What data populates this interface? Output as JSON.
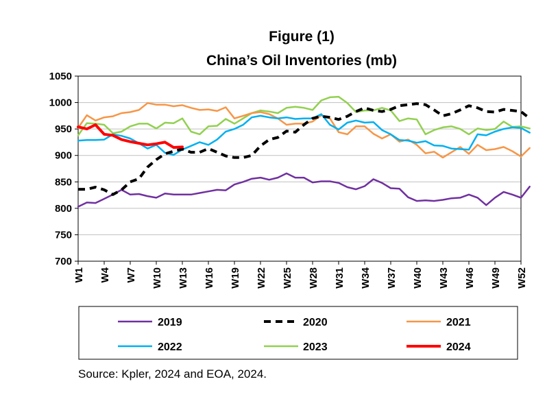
{
  "chart_data": {
    "type": "line",
    "title": "Figure (1)",
    "subtitle": "China’s Oil Inventories (mb)",
    "xlabel": "",
    "ylabel": "",
    "ylim": [
      700,
      1050
    ],
    "yticks": [
      700,
      750,
      800,
      850,
      900,
      950,
      1000,
      1050
    ],
    "x_tick_labels": [
      "W1",
      "W4",
      "W7",
      "W10",
      "W13",
      "W16",
      "W19",
      "W22",
      "W25",
      "W28",
      "W31",
      "W34",
      "W37",
      "W40",
      "W43",
      "W46",
      "W49",
      "W52"
    ],
    "x_tick_weeks": [
      1,
      4,
      7,
      10,
      13,
      16,
      19,
      22,
      25,
      28,
      31,
      34,
      37,
      40,
      43,
      46,
      49,
      52
    ],
    "grid": "horizontal",
    "legend_position": "bottom",
    "series": [
      {
        "name": "2019",
        "color": "#7030A0",
        "style": "solid",
        "values": [
          803,
          811,
          810,
          818,
          826,
          835,
          826,
          827,
          823,
          820,
          828,
          826,
          826,
          826,
          829,
          832,
          835,
          834,
          845,
          850,
          856,
          858,
          854,
          858,
          866,
          858,
          858,
          849,
          851,
          851,
          848,
          840,
          836,
          842,
          855,
          848,
          838,
          837,
          821,
          814,
          815,
          814,
          816,
          819,
          820,
          826,
          820,
          806,
          820,
          831,
          826,
          820,
          841
        ]
      },
      {
        "name": "2020",
        "color": "#000000",
        "style": "dashed",
        "values": [
          836,
          836,
          840,
          835,
          826,
          835,
          850,
          856,
          878,
          892,
          903,
          908,
          912,
          906,
          906,
          913,
          906,
          899,
          896,
          896,
          900,
          918,
          930,
          934,
          946,
          944,
          958,
          970,
          974,
          972,
          968,
          974,
          983,
          990,
          985,
          983,
          987,
          994,
          996,
          998,
          996,
          986,
          975,
          979,
          986,
          994,
          990,
          983,
          982,
          987,
          985,
          983,
          970
        ]
      },
      {
        "name": "2021",
        "color": "#F79646",
        "style": "solid",
        "values": [
          952,
          976,
          966,
          972,
          974,
          980,
          982,
          986,
          999,
          996,
          996,
          993,
          995,
          990,
          986,
          987,
          984,
          991,
          970,
          975,
          980,
          982,
          978,
          970,
          958,
          960,
          960,
          964,
          976,
          970,
          944,
          940,
          955,
          955,
          941,
          932,
          940,
          926,
          930,
          920,
          904,
          907,
          896,
          906,
          916,
          903,
          920,
          910,
          912,
          916,
          908,
          898,
          914
        ]
      },
      {
        "name": "2022",
        "color": "#00B0F0",
        "style": "solid",
        "values": [
          928,
          929,
          929,
          930,
          940,
          937,
          932,
          923,
          913,
          920,
          905,
          901,
          911,
          918,
          925,
          920,
          930,
          945,
          950,
          958,
          972,
          975,
          972,
          970,
          972,
          969,
          970,
          970,
          978,
          958,
          949,
          962,
          966,
          962,
          963,
          948,
          940,
          929,
          928,
          924,
          927,
          919,
          918,
          913,
          912,
          911,
          940,
          938,
          945,
          950,
          953,
          952,
          943
        ]
      },
      {
        "name": "2023",
        "color": "#92D050",
        "style": "solid",
        "values": [
          938,
          961,
          960,
          958,
          942,
          945,
          955,
          960,
          960,
          951,
          962,
          961,
          970,
          945,
          940,
          955,
          956,
          969,
          960,
          970,
          980,
          985,
          983,
          980,
          990,
          992,
          990,
          986,
          1004,
          1010,
          1011,
          999,
          982,
          985,
          985,
          990,
          985,
          965,
          970,
          968,
          940,
          948,
          953,
          955,
          950,
          940,
          951,
          948,
          950,
          964,
          954,
          955,
          951
        ]
      },
      {
        "name": "2024",
        "color": "#FF0000",
        "style": "solid",
        "values": [
          954,
          950,
          958,
          940,
          938,
          930,
          926,
          923,
          920,
          922,
          925,
          915,
          916
        ]
      }
    ]
  },
  "source_note": "Source: Kpler, 2024 and EOA, 2024."
}
